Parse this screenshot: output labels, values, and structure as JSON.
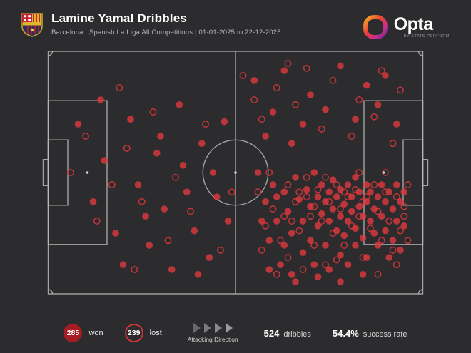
{
  "header": {
    "title": "Lamine Yamal Dribbles",
    "subtitle": "Barcelona | Spanish La Liga All Competitions | 01-01-2025 to 22-12-2025"
  },
  "branding": {
    "opta_word": "Opta",
    "opta_sub": "BY STATS PERFORM"
  },
  "legend": {
    "won_value": "285",
    "won_label": "won",
    "lost_value": "239",
    "lost_label": "lost",
    "attacking_direction": "Attacking Direction",
    "dribbles_value": "524",
    "dribbles_label": "dribbles",
    "success_value": "54.4%",
    "success_label": "success rate"
  },
  "colors": {
    "background": "#2c2c2e",
    "pitch_line": "#b9b9b9",
    "won_fill": "#e03a3e",
    "lost_stroke": "#d2353a",
    "won_badge": "#a31d22"
  },
  "chart_data": {
    "type": "scatter",
    "title": "Lamine Yamal Dribbles",
    "subtitle": "Barcelona | Spanish La Liga All Competitions | 01-01-2025 to 22-12-2025",
    "pitch": "football-horizontal-attacking-right",
    "totals": {
      "won": 285,
      "lost": 239,
      "dribbles": 524,
      "success_rate_pct": 54.4
    },
    "won_points": [
      [
        8,
        30
      ],
      [
        12,
        62
      ],
      [
        15,
        45
      ],
      [
        18,
        75
      ],
      [
        22,
        28
      ],
      [
        24,
        55
      ],
      [
        27,
        80
      ],
      [
        29,
        42
      ],
      [
        31,
        65
      ],
      [
        33,
        90
      ],
      [
        35,
        22
      ],
      [
        37,
        58
      ],
      [
        39,
        74
      ],
      [
        41,
        38
      ],
      [
        43,
        85
      ],
      [
        45,
        60
      ],
      [
        47,
        29
      ],
      [
        48,
        70
      ],
      [
        44,
        50
      ],
      [
        40,
        92
      ],
      [
        36,
        47
      ],
      [
        30,
        35
      ],
      [
        26,
        68
      ],
      [
        20,
        88
      ],
      [
        14,
        20
      ],
      [
        55,
        12
      ],
      [
        63,
        8
      ],
      [
        70,
        18
      ],
      [
        78,
        6
      ],
      [
        85,
        14
      ],
      [
        90,
        10
      ],
      [
        60,
        25
      ],
      [
        68,
        30
      ],
      [
        74,
        24
      ],
      [
        82,
        28
      ],
      [
        88,
        22
      ],
      [
        93,
        30
      ],
      [
        58,
        35
      ],
      [
        65,
        38
      ],
      [
        56,
        50
      ],
      [
        58,
        62
      ],
      [
        59,
        78
      ],
      [
        60,
        55
      ],
      [
        61,
        70
      ],
      [
        62,
        88
      ],
      [
        63,
        58
      ],
      [
        64,
        66
      ],
      [
        65,
        75
      ],
      [
        65,
        92
      ],
      [
        66,
        52
      ],
      [
        67,
        61
      ],
      [
        68,
        70
      ],
      [
        68,
        83
      ],
      [
        69,
        57
      ],
      [
        70,
        64
      ],
      [
        70,
        78
      ],
      [
        71,
        50
      ],
      [
        71,
        88
      ],
      [
        72,
        60
      ],
      [
        72,
        72
      ],
      [
        73,
        55
      ],
      [
        73,
        67
      ],
      [
        74,
        62
      ],
      [
        74,
        80
      ],
      [
        75,
        58
      ],
      [
        75,
        70
      ],
      [
        75,
        90
      ],
      [
        76,
        53
      ],
      [
        76,
        65
      ],
      [
        77,
        60
      ],
      [
        77,
        74
      ],
      [
        78,
        57
      ],
      [
        78,
        68
      ],
      [
        78,
        84
      ],
      [
        79,
        63
      ],
      [
        79,
        76
      ],
      [
        80,
        55
      ],
      [
        80,
        70
      ],
      [
        80,
        88
      ],
      [
        81,
        60
      ],
      [
        81,
        66
      ],
      [
        82,
        52
      ],
      [
        82,
        73
      ],
      [
        82,
        80
      ],
      [
        83,
        58
      ],
      [
        83,
        64
      ],
      [
        84,
        68
      ],
      [
        84,
        77
      ],
      [
        85,
        55
      ],
      [
        85,
        62
      ],
      [
        85,
        85
      ],
      [
        86,
        70
      ],
      [
        86,
        58
      ],
      [
        87,
        65
      ],
      [
        87,
        75
      ],
      [
        88,
        60
      ],
      [
        88,
        80
      ],
      [
        89,
        55
      ],
      [
        89,
        68
      ],
      [
        90,
        62
      ],
      [
        90,
        74
      ],
      [
        91,
        58
      ],
      [
        91,
        85
      ],
      [
        92,
        65
      ],
      [
        92,
        78
      ],
      [
        93,
        55
      ],
      [
        93,
        70
      ],
      [
        94,
        62
      ],
      [
        94,
        82
      ],
      [
        95,
        58
      ],
      [
        95,
        72
      ],
      [
        66,
        95
      ],
      [
        72,
        93
      ],
      [
        78,
        95
      ],
      [
        84,
        92
      ],
      [
        57,
        70
      ],
      [
        59,
        90
      ],
      [
        61,
        60
      ],
      [
        63,
        80
      ]
    ],
    "lost_points": [
      [
        6,
        50
      ],
      [
        10,
        35
      ],
      [
        13,
        70
      ],
      [
        17,
        55
      ],
      [
        21,
        40
      ],
      [
        25,
        62
      ],
      [
        28,
        25
      ],
      [
        32,
        78
      ],
      [
        34,
        52
      ],
      [
        38,
        66
      ],
      [
        42,
        30
      ],
      [
        46,
        82
      ],
      [
        49,
        58
      ],
      [
        23,
        90
      ],
      [
        19,
        15
      ],
      [
        52,
        10
      ],
      [
        61,
        15
      ],
      [
        69,
        7
      ],
      [
        76,
        12
      ],
      [
        83,
        20
      ],
      [
        89,
        8
      ],
      [
        94,
        16
      ],
      [
        57,
        28
      ],
      [
        66,
        22
      ],
      [
        73,
        32
      ],
      [
        81,
        35
      ],
      [
        87,
        27
      ],
      [
        92,
        38
      ],
      [
        64,
        5
      ],
      [
        55,
        20
      ],
      [
        56,
        58
      ],
      [
        58,
        72
      ],
      [
        60,
        65
      ],
      [
        62,
        78
      ],
      [
        64,
        55
      ],
      [
        64,
        85
      ],
      [
        66,
        62
      ],
      [
        67,
        74
      ],
      [
        68,
        90
      ],
      [
        69,
        52
      ],
      [
        70,
        68
      ],
      [
        71,
        80
      ],
      [
        72,
        57
      ],
      [
        73,
        70
      ],
      [
        74,
        88
      ],
      [
        75,
        62
      ],
      [
        76,
        75
      ],
      [
        77,
        55
      ],
      [
        78,
        65
      ],
      [
        79,
        80
      ],
      [
        80,
        60
      ],
      [
        81,
        72
      ],
      [
        82,
        57
      ],
      [
        83,
        68
      ],
      [
        84,
        85
      ],
      [
        85,
        60
      ],
      [
        86,
        73
      ],
      [
        87,
        55
      ],
      [
        88,
        66
      ],
      [
        89,
        78
      ],
      [
        90,
        58
      ],
      [
        91,
        70
      ],
      [
        92,
        82
      ],
      [
        93,
        60
      ],
      [
        94,
        74
      ],
      [
        95,
        64
      ],
      [
        96,
        55
      ],
      [
        96,
        78
      ],
      [
        61,
        92
      ],
      [
        67,
        58
      ],
      [
        71,
        64
      ],
      [
        77,
        86
      ],
      [
        83,
        50
      ],
      [
        88,
        92
      ],
      [
        93,
        88
      ],
      [
        59,
        50
      ],
      [
        63,
        68
      ],
      [
        69,
        60
      ],
      [
        74,
        52
      ],
      [
        79,
        58
      ],
      [
        84,
        62
      ],
      [
        90,
        50
      ],
      [
        95,
        68
      ],
      [
        57,
        82
      ],
      [
        65,
        70
      ]
    ]
  }
}
